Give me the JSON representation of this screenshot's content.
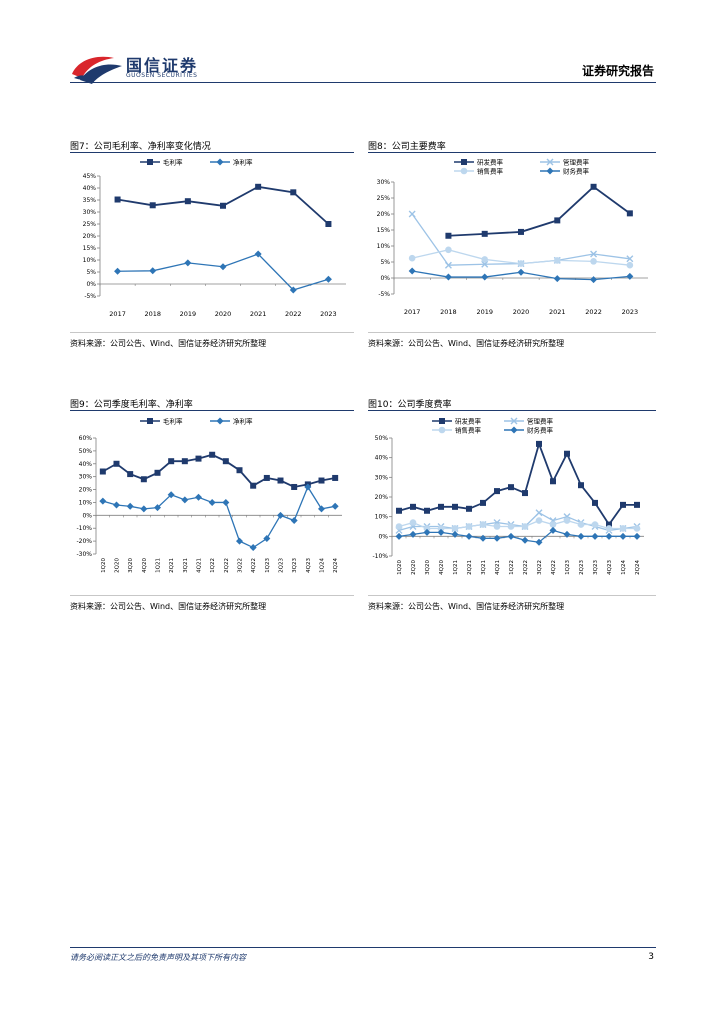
{
  "header": {
    "logo_cn": "国信证券",
    "logo_en": "GUOSEN SECURITIES",
    "report_title": "证券研究报告"
  },
  "colors": {
    "navy": "#1F3A6D",
    "mid_blue": "#2E75B6",
    "light_blue": "#9DC3E6",
    "pale_blue": "#BDD7EE",
    "brand_red": "#D9262C"
  },
  "figures": {
    "fig7": {
      "title": "图7：公司毛利率、净利率变化情况",
      "source": "资料来源：公司公告、Wind、国信证券经济研究所整理"
    },
    "fig8": {
      "title": "图8：公司主要费率",
      "source": "资料来源：公司公告、Wind、国信证券经济研究所整理"
    },
    "fig9": {
      "title": "图9：公司季度毛利率、净利率",
      "source": "资料来源：公司公告、Wind、国信证券经济研究所整理"
    },
    "fig10": {
      "title": "图10：公司季度费率",
      "source": "资料来源：公司公告、Wind、国信证券经济研究所整理"
    }
  },
  "footer": {
    "disclaimer": "请务必阅读正文之后的免责声明及其项下所有内容",
    "page_number": "3"
  },
  "chart_data": [
    {
      "id": "fig7",
      "type": "line",
      "categories": [
        "2017",
        "2018",
        "2019",
        "2020",
        "2021",
        "2022",
        "2023"
      ],
      "yticks": [
        "-5%",
        "0%",
        "5%",
        "10%",
        "15%",
        "20%",
        "25%",
        "30%",
        "35%",
        "40%",
        "45%"
      ],
      "ylim": [
        -5,
        45
      ],
      "legend_position": "top",
      "series": [
        {
          "name": "毛利率",
          "color": "#1F3A6D",
          "marker": "square",
          "values": [
            35.2,
            32.8,
            34.5,
            32.6,
            40.5,
            38.2,
            25.0
          ]
        },
        {
          "name": "净利率",
          "color": "#2E75B6",
          "marker": "diamond",
          "values": [
            5.3,
            5.5,
            8.8,
            7.2,
            12.5,
            -2.5,
            2.0
          ]
        }
      ]
    },
    {
      "id": "fig8",
      "type": "line",
      "categories": [
        "2017",
        "2018",
        "2019",
        "2020",
        "2021",
        "2022",
        "2023"
      ],
      "yticks": [
        "-5%",
        "0%",
        "5%",
        "10%",
        "15%",
        "20%",
        "25%",
        "30%"
      ],
      "ylim": [
        -5,
        30
      ],
      "legend_position": "top",
      "series": [
        {
          "name": "研发费率",
          "color": "#1F3A6D",
          "marker": "square",
          "values": [
            null,
            13.2,
            13.8,
            14.4,
            18.0,
            28.5,
            20.2
          ]
        },
        {
          "name": "管理费率",
          "color": "#9DC3E6",
          "marker": "x",
          "values": [
            20.0,
            4.0,
            4.3,
            4.5,
            5.5,
            7.5,
            6.0
          ]
        },
        {
          "name": "销售费率",
          "color": "#BDD7EE",
          "marker": "circle",
          "values": [
            6.2,
            8.8,
            5.8,
            4.5,
            5.5,
            5.2,
            4.0
          ]
        },
        {
          "name": "财务费率",
          "color": "#2E75B6",
          "marker": "diamond",
          "values": [
            2.2,
            0.3,
            0.3,
            1.8,
            -0.2,
            -0.5,
            0.5
          ]
        }
      ]
    },
    {
      "id": "fig9",
      "type": "line",
      "categories": [
        "1Q20",
        "2Q20",
        "3Q20",
        "4Q20",
        "1Q21",
        "2Q21",
        "3Q21",
        "4Q21",
        "1Q22",
        "2Q22",
        "3Q22",
        "4Q22",
        "1Q23",
        "2Q23",
        "3Q23",
        "4Q23",
        "1Q24",
        "2Q24"
      ],
      "yticks": [
        "-30%",
        "-20%",
        "-10%",
        "0%",
        "10%",
        "20%",
        "30%",
        "40%",
        "50%",
        "60%"
      ],
      "ylim": [
        -30,
        60
      ],
      "legend_position": "top",
      "series": [
        {
          "name": "毛利率",
          "color": "#1F3A6D",
          "marker": "square",
          "values": [
            34,
            40,
            32,
            28,
            33,
            42,
            42,
            44,
            47,
            42,
            35,
            23,
            29,
            27,
            22,
            24,
            27,
            29
          ]
        },
        {
          "name": "净利率",
          "color": "#2E75B6",
          "marker": "diamond",
          "values": [
            11,
            8,
            7,
            5,
            6,
            16,
            12,
            14,
            10,
            10,
            -20,
            -25,
            -18,
            0,
            -4,
            22,
            5,
            7
          ]
        }
      ]
    },
    {
      "id": "fig10",
      "type": "line",
      "categories": [
        "1Q20",
        "2Q20",
        "3Q20",
        "4Q20",
        "1Q21",
        "2Q21",
        "3Q21",
        "4Q21",
        "1Q22",
        "2Q22",
        "3Q22",
        "4Q22",
        "1Q23",
        "2Q23",
        "3Q23",
        "4Q23",
        "1Q24",
        "2Q24"
      ],
      "yticks": [
        "-10%",
        "0%",
        "10%",
        "20%",
        "30%",
        "40%",
        "50%"
      ],
      "ylim": [
        -10,
        50
      ],
      "legend_position": "top",
      "series": [
        {
          "name": "研发费率",
          "color": "#1F3A6D",
          "marker": "square",
          "values": [
            13,
            15,
            13,
            15,
            15,
            14,
            17,
            23,
            25,
            22,
            47,
            28,
            42,
            26,
            17,
            6,
            16,
            16
          ]
        },
        {
          "name": "管理费率",
          "color": "#9DC3E6",
          "marker": "x",
          "values": [
            3,
            5,
            5,
            5,
            4,
            5,
            6,
            7,
            6,
            5,
            12,
            8,
            10,
            7,
            5,
            3,
            4,
            5
          ]
        },
        {
          "name": "销售费率",
          "color": "#BDD7EE",
          "marker": "circle",
          "values": [
            5,
            7,
            4,
            4,
            4,
            5,
            6,
            5,
            5,
            5,
            8,
            6,
            8,
            6,
            6,
            4,
            4,
            4
          ]
        },
        {
          "name": "财务费率",
          "color": "#2E75B6",
          "marker": "diamond",
          "values": [
            0,
            1,
            2,
            2,
            1,
            0,
            -1,
            -1,
            0,
            -2,
            -3,
            3,
            1,
            0,
            0,
            0,
            0,
            0
          ]
        }
      ]
    }
  ]
}
